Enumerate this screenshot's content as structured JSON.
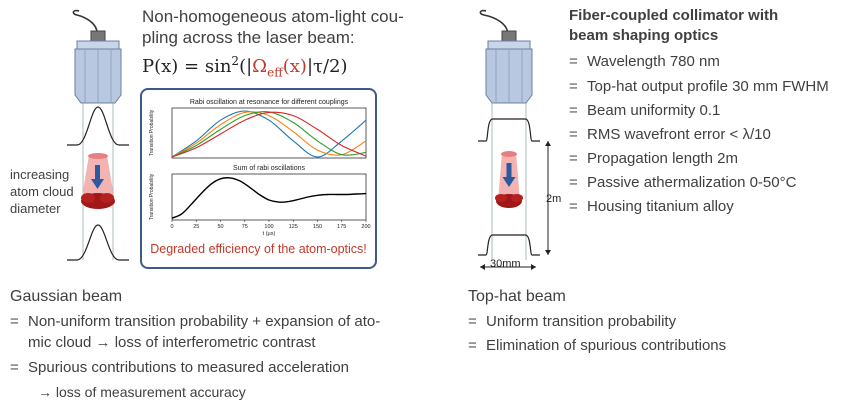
{
  "left": {
    "intro_line1": "Non-homogeneous atom-light cou-",
    "intro_line2": "pling across the laser beam:",
    "formula_lhs": "P(x) = sin",
    "formula_sup": "2",
    "formula_open": "(|",
    "formula_omega": "Ω",
    "formula_sub": "eff",
    "formula_omega_arg": "(x)",
    "formula_close": "|τ/2)",
    "side_label_1": "increasing",
    "side_label_2": "atom cloud",
    "side_label_3": "diameter",
    "degraded": "Degraded efficiency of the atom-optics!",
    "beam_title": "Gaussian beam",
    "bullets": [
      {
        "eq": "=",
        "line1": "Non-uniform transition probability + expansion of ato-",
        "line2": "mic cloud → loss of interferometric contrast"
      },
      {
        "eq": "=",
        "line1": "Spurious contributions to measured acceleration",
        "line2": "→ loss of measurement accuracy"
      }
    ]
  },
  "chart_data": [
    {
      "type": "line",
      "title": "Rabi oscillation at resonance for different couplings",
      "ylabel": "Transition Probability",
      "series": [
        {
          "values": [
            0,
            0.35,
            0.8,
            1.0,
            0.8,
            0.35,
            0.0,
            0.35,
            0.8
          ],
          "color": "#1f77b4"
        },
        {
          "values": [
            0,
            0.3,
            0.7,
            0.97,
            0.9,
            0.55,
            0.15,
            0.05,
            0.35
          ],
          "color": "#ff7f0e"
        },
        {
          "values": [
            0,
            0.25,
            0.6,
            0.9,
            0.98,
            0.75,
            0.35,
            0.05,
            0.1
          ],
          "color": "#2ca02c"
        },
        {
          "values": [
            0,
            0.2,
            0.5,
            0.8,
            0.97,
            0.9,
            0.6,
            0.25,
            0.02
          ],
          "color": "#d62728"
        }
      ],
      "x": [
        0,
        25,
        50,
        75,
        100,
        125,
        150,
        175,
        200
      ]
    },
    {
      "type": "line",
      "title": "Sum of rabi oscillations",
      "xlabel": "t (μs)",
      "ylabel": "Transition Probability",
      "x": [
        0,
        10,
        20,
        30,
        40,
        50,
        60,
        70,
        80,
        90,
        100,
        110,
        120,
        130,
        140,
        150,
        160,
        170,
        180,
        190,
        200
      ],
      "series": [
        {
          "values": [
            0.02,
            0.12,
            0.35,
            0.6,
            0.82,
            0.95,
            0.97,
            0.9,
            0.75,
            0.58,
            0.45,
            0.4,
            0.41,
            0.46,
            0.52,
            0.56,
            0.58,
            0.58,
            0.58,
            0.59,
            0.6
          ],
          "color": "#000000"
        }
      ],
      "xticks": [
        "0",
        "25",
        "50",
        "75",
        "100",
        "125",
        "150",
        "175",
        "200"
      ],
      "xlim": [
        0,
        200
      ]
    }
  ],
  "right": {
    "title_line1": "Fiber-coupled collimator with",
    "title_line2": "beam shaping optics",
    "specs": [
      {
        "eq": "=",
        "text": "Wavelength 780 nm"
      },
      {
        "eq": "=",
        "text": "Top-hat output profile 30 mm FWHM"
      },
      {
        "eq": "=",
        "text": "Beam uniformity 0.1"
      },
      {
        "eq": "=",
        "text": "RMS wavefront error < λ/10"
      },
      {
        "eq": "=",
        "text": "Propagation length 2m"
      },
      {
        "eq": "=",
        "text": "Passive athermalization 0-50°C"
      },
      {
        "eq": "=",
        "text": "Housing titanium alloy"
      }
    ],
    "dim_length": "2m",
    "dim_width": "30mm",
    "beam_title": "Top-hat beam",
    "bullets": [
      {
        "eq": "=",
        "text": "Uniform transition probability"
      },
      {
        "eq": "=",
        "text": "Elimination of spurious contributions"
      }
    ]
  },
  "colors": {
    "collimator_body": "#b8c8e0",
    "collimator_edge": "#6a7f9f",
    "beam_pink": "#f2a6a6",
    "cloud_red": "#a01818",
    "arrow_blue": "#2c5aa0",
    "frame_blue": "#3d5a8a",
    "red_text": "#c0392b"
  }
}
